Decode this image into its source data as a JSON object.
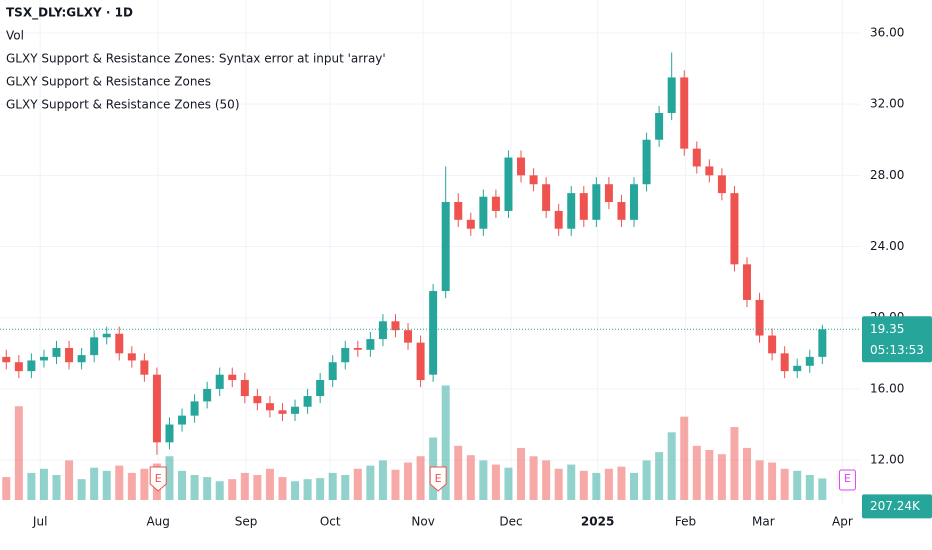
{
  "chart_data": {
    "type": "candlestick",
    "title": "TSX_DLY:GLXY · 1D",
    "indicators": [
      "Vol",
      "GLXY Support & Resistance Zones: Syntax error at input 'array'",
      "GLXY Support & Resistance Zones",
      "GLXY Support & Resistance Zones (50)"
    ],
    "open": [
      17.8,
      17.5,
      17.0,
      17.6,
      17.8,
      18.3,
      17.5,
      17.9,
      18.9,
      19.1,
      18.0,
      17.6,
      16.8,
      13.0,
      14.0,
      14.5,
      15.3,
      16.0,
      16.8,
      16.5,
      15.6,
      15.2,
      14.8,
      14.6,
      15.0,
      15.6,
      16.5,
      17.5,
      18.3,
      18.2,
      18.8,
      19.8,
      19.3,
      18.6,
      16.8,
      21.5,
      26.5,
      25.5,
      25.0,
      26.8,
      26.0,
      29.0,
      28.0,
      27.5,
      26.0,
      25.0,
      27.0,
      25.5,
      27.5,
      26.5,
      25.5,
      27.5,
      30.0,
      31.5,
      33.5,
      29.5,
      28.5,
      28.0,
      27.0,
      23.0,
      21.0,
      19.0,
      18.0,
      17.0,
      17.3,
      17.8
    ],
    "high": [
      18.2,
      17.9,
      18.0,
      18.2,
      18.7,
      18.7,
      18.3,
      19.3,
      19.5,
      19.5,
      18.4,
      18.0,
      17.2,
      14.4,
      14.9,
      15.7,
      16.4,
      17.2,
      17.2,
      16.9,
      16.0,
      15.6,
      15.2,
      15.4,
      16.0,
      16.9,
      17.9,
      18.7,
      18.7,
      19.2,
      20.2,
      20.2,
      19.7,
      19.0,
      21.9,
      28.5,
      27.0,
      25.9,
      27.2,
      27.2,
      29.4,
      29.4,
      28.4,
      27.9,
      26.4,
      27.4,
      27.4,
      27.9,
      27.9,
      26.9,
      27.9,
      30.4,
      31.9,
      34.9,
      33.9,
      29.9,
      28.9,
      28.4,
      27.4,
      23.4,
      21.4,
      19.4,
      18.4,
      17.7,
      18.2,
      19.6
    ],
    "low": [
      17.1,
      16.6,
      16.6,
      17.2,
      17.4,
      17.1,
      17.1,
      17.5,
      18.5,
      17.6,
      17.2,
      16.4,
      12.3,
      12.6,
      13.6,
      14.1,
      14.9,
      15.6,
      16.1,
      15.2,
      14.8,
      14.4,
      14.2,
      14.2,
      14.6,
      15.2,
      16.1,
      17.1,
      17.8,
      17.8,
      18.4,
      18.9,
      18.2,
      16.1,
      16.4,
      21.1,
      25.1,
      24.6,
      24.6,
      25.6,
      25.6,
      27.6,
      27.1,
      25.6,
      24.6,
      24.6,
      25.1,
      25.1,
      26.1,
      25.1,
      25.1,
      27.1,
      29.6,
      31.1,
      29.1,
      28.1,
      27.6,
      26.6,
      22.6,
      20.6,
      18.6,
      17.6,
      16.6,
      16.6,
      16.9,
      17.4
    ],
    "close": [
      17.5,
      17.0,
      17.6,
      17.8,
      18.3,
      17.5,
      17.9,
      18.9,
      19.1,
      18.0,
      17.6,
      16.8,
      13.0,
      14.0,
      14.5,
      15.3,
      16.0,
      16.8,
      16.5,
      15.6,
      15.2,
      14.8,
      14.6,
      15.0,
      15.6,
      16.5,
      17.5,
      18.3,
      18.2,
      18.8,
      19.8,
      19.3,
      18.6,
      16.5,
      21.5,
      26.5,
      25.5,
      25.0,
      26.8,
      26.0,
      29.0,
      28.0,
      27.5,
      26.0,
      25.0,
      27.0,
      25.5,
      27.5,
      26.5,
      25.5,
      27.5,
      30.0,
      31.5,
      33.5,
      29.5,
      28.5,
      28.0,
      27.0,
      23.0,
      21.0,
      19.0,
      18.0,
      17.0,
      17.3,
      17.8,
      19.35
    ],
    "volume": [
      220,
      900,
      260,
      300,
      240,
      380,
      200,
      310,
      280,
      330,
      260,
      300,
      350,
      420,
      280,
      240,
      220,
      180,
      200,
      260,
      240,
      300,
      220,
      180,
      200,
      210,
      260,
      240,
      300,
      330,
      380,
      290,
      360,
      420,
      600,
      1100,
      520,
      430,
      380,
      340,
      310,
      500,
      420,
      380,
      300,
      340,
      280,
      260,
      300,
      320,
      260,
      380,
      460,
      650,
      800,
      520,
      480,
      440,
      700,
      500,
      380,
      360,
      300,
      280,
      240,
      207.24
    ],
    "volume_label": "207.24K",
    "up_color": "#26a69a",
    "down_color": "#ef5350",
    "last_price": {
      "value": 19.35,
      "label": "19.35"
    },
    "countdown": "05:13:53",
    "earnings": [
      {
        "x": 12.1,
        "label": "E"
      },
      {
        "x": 34.4,
        "label": "E"
      },
      {
        "x": 67.0,
        "label": "E"
      }
    ],
    "xlim": [
      -0.5,
      68
    ],
    "xticks": [
      {
        "value": 2.7,
        "label": "Jul"
      },
      {
        "value": 12.1,
        "label": "Aug"
      },
      {
        "value": 19.1,
        "label": "Sep"
      },
      {
        "value": 25.8,
        "label": "Oct"
      },
      {
        "value": 33.2,
        "label": "Nov"
      },
      {
        "value": 40.2,
        "label": "Dec"
      },
      {
        "value": 47.1,
        "label": "2025"
      },
      {
        "value": 54.1,
        "label": "Feb"
      },
      {
        "value": 60.3,
        "label": "Mar"
      },
      {
        "value": 66.6,
        "label": "Apr"
      }
    ],
    "ylim": [
      9.76,
      37.85
    ],
    "yticks": [
      {
        "value": 12,
        "label": "12.00"
      },
      {
        "value": 16,
        "label": "16.00"
      },
      {
        "value": 20,
        "label": "20.00"
      },
      {
        "value": 24,
        "label": "24.00"
      },
      {
        "value": 28,
        "label": "28.00"
      },
      {
        "value": 32,
        "label": "32.00"
      },
      {
        "value": 36,
        "label": "36.00"
      }
    ],
    "volume_ylim": [
      0,
      1200
    ],
    "grid": true
  }
}
